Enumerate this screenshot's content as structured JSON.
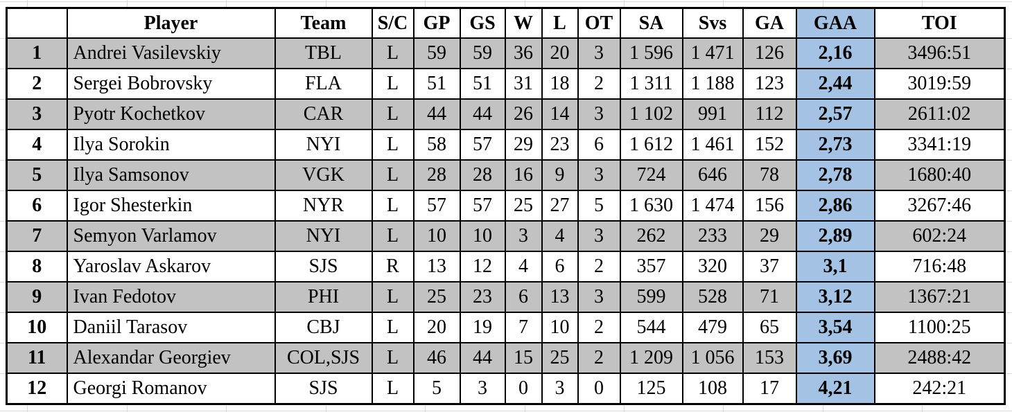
{
  "colors": {
    "row_stripe": "#c2c2c2",
    "gaa_column_fill": "#a4c2e4",
    "table_border": "#000000",
    "sheet_gridline": "#d9d9d9"
  },
  "table": {
    "columns": [
      {
        "key": "rank",
        "label": ""
      },
      {
        "key": "player",
        "label": "Player"
      },
      {
        "key": "team",
        "label": "Team"
      },
      {
        "key": "sc",
        "label": "S/C"
      },
      {
        "key": "gp",
        "label": "GP"
      },
      {
        "key": "gs",
        "label": "GS"
      },
      {
        "key": "w",
        "label": "W"
      },
      {
        "key": "l",
        "label": "L"
      },
      {
        "key": "ot",
        "label": "OT"
      },
      {
        "key": "sa",
        "label": "SA"
      },
      {
        "key": "svs",
        "label": "Svs"
      },
      {
        "key": "ga",
        "label": "GA"
      },
      {
        "key": "gaa",
        "label": "GAA"
      },
      {
        "key": "toi",
        "label": "TOI"
      }
    ],
    "rows": [
      [
        "1",
        "Andrei Vasilevskiy",
        "TBL",
        "L",
        "59",
        "59",
        "36",
        "20",
        "3",
        "1 596",
        "1 471",
        "126",
        "2,16",
        "3496:51"
      ],
      [
        "2",
        "Sergei Bobrovsky",
        "FLA",
        "L",
        "51",
        "51",
        "31",
        "18",
        "2",
        "1 311",
        "1 188",
        "123",
        "2,44",
        "3019:59"
      ],
      [
        "3",
        "Pyotr Kochetkov",
        "CAR",
        "L",
        "44",
        "44",
        "26",
        "14",
        "3",
        "1 102",
        "991",
        "112",
        "2,57",
        "2611:02"
      ],
      [
        "4",
        "Ilya Sorokin",
        "NYI",
        "L",
        "58",
        "57",
        "29",
        "23",
        "6",
        "1 612",
        "1 461",
        "152",
        "2,73",
        "3341:19"
      ],
      [
        "5",
        "Ilya Samsonov",
        "VGK",
        "L",
        "28",
        "28",
        "16",
        "9",
        "3",
        "724",
        "646",
        "78",
        "2,78",
        "1680:40"
      ],
      [
        "6",
        "Igor Shesterkin",
        "NYR",
        "L",
        "57",
        "57",
        "25",
        "27",
        "5",
        "1 630",
        "1 474",
        "156",
        "2,86",
        "3267:46"
      ],
      [
        "7",
        "Semyon Varlamov",
        "NYI",
        "L",
        "10",
        "10",
        "3",
        "4",
        "3",
        "262",
        "233",
        "29",
        "2,89",
        "602:24"
      ],
      [
        "8",
        "Yaroslav Askarov",
        "SJS",
        "R",
        "13",
        "12",
        "4",
        "6",
        "2",
        "357",
        "320",
        "37",
        "3,1",
        "716:48"
      ],
      [
        "9",
        "Ivan Fedotov",
        "PHI",
        "L",
        "25",
        "23",
        "6",
        "13",
        "3",
        "599",
        "528",
        "71",
        "3,12",
        "1367:21"
      ],
      [
        "10",
        "Daniil Tarasov",
        "CBJ",
        "L",
        "20",
        "19",
        "7",
        "10",
        "2",
        "544",
        "479",
        "65",
        "3,54",
        "1100:25"
      ],
      [
        "11",
        "Alexandar Georgiev",
        "COL,SJS",
        "L",
        "46",
        "44",
        "15",
        "25",
        "2",
        "1 209",
        "1 056",
        "153",
        "3,69",
        "2488:42"
      ],
      [
        "12",
        "Georgi Romanov",
        "SJS",
        "L",
        "5",
        "3",
        "0",
        "3",
        "0",
        "125",
        "108",
        "17",
        "4,21",
        "242:21"
      ]
    ]
  }
}
